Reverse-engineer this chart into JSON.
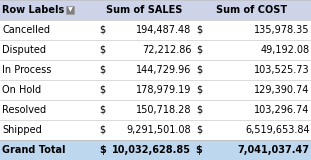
{
  "headers": [
    "Row Labels",
    "Sum of SALES",
    "Sum of COST"
  ],
  "rows": [
    [
      "Cancelled",
      "$",
      "194,487.48",
      "$",
      "135,978.35"
    ],
    [
      "Disputed",
      "$",
      "72,212.86",
      "$",
      "49,192.08"
    ],
    [
      "In Process",
      "$",
      "144,729.96",
      "$",
      "103,525.73"
    ],
    [
      "On Hold",
      "$",
      "178,979.19",
      "$",
      "129,390.74"
    ],
    [
      "Resolved",
      "$",
      "150,718.28",
      "$",
      "103,296.74"
    ],
    [
      "Shipped",
      "$",
      "9,291,501.08",
      "$",
      "6,519,653.84"
    ]
  ],
  "grand_total": [
    "Grand Total",
    "$",
    "10,032,628.85",
    "$",
    "7,041,037.47"
  ],
  "header_bg": "#CDD4EA",
  "data_bg": "#FFFFFF",
  "grand_total_bg": "#BDD7EE",
  "text_color": "#000000",
  "border_color": "#C0C0C0",
  "fig_width": 3.11,
  "fig_height": 1.6,
  "dpi": 100,
  "font_size": 7.0
}
